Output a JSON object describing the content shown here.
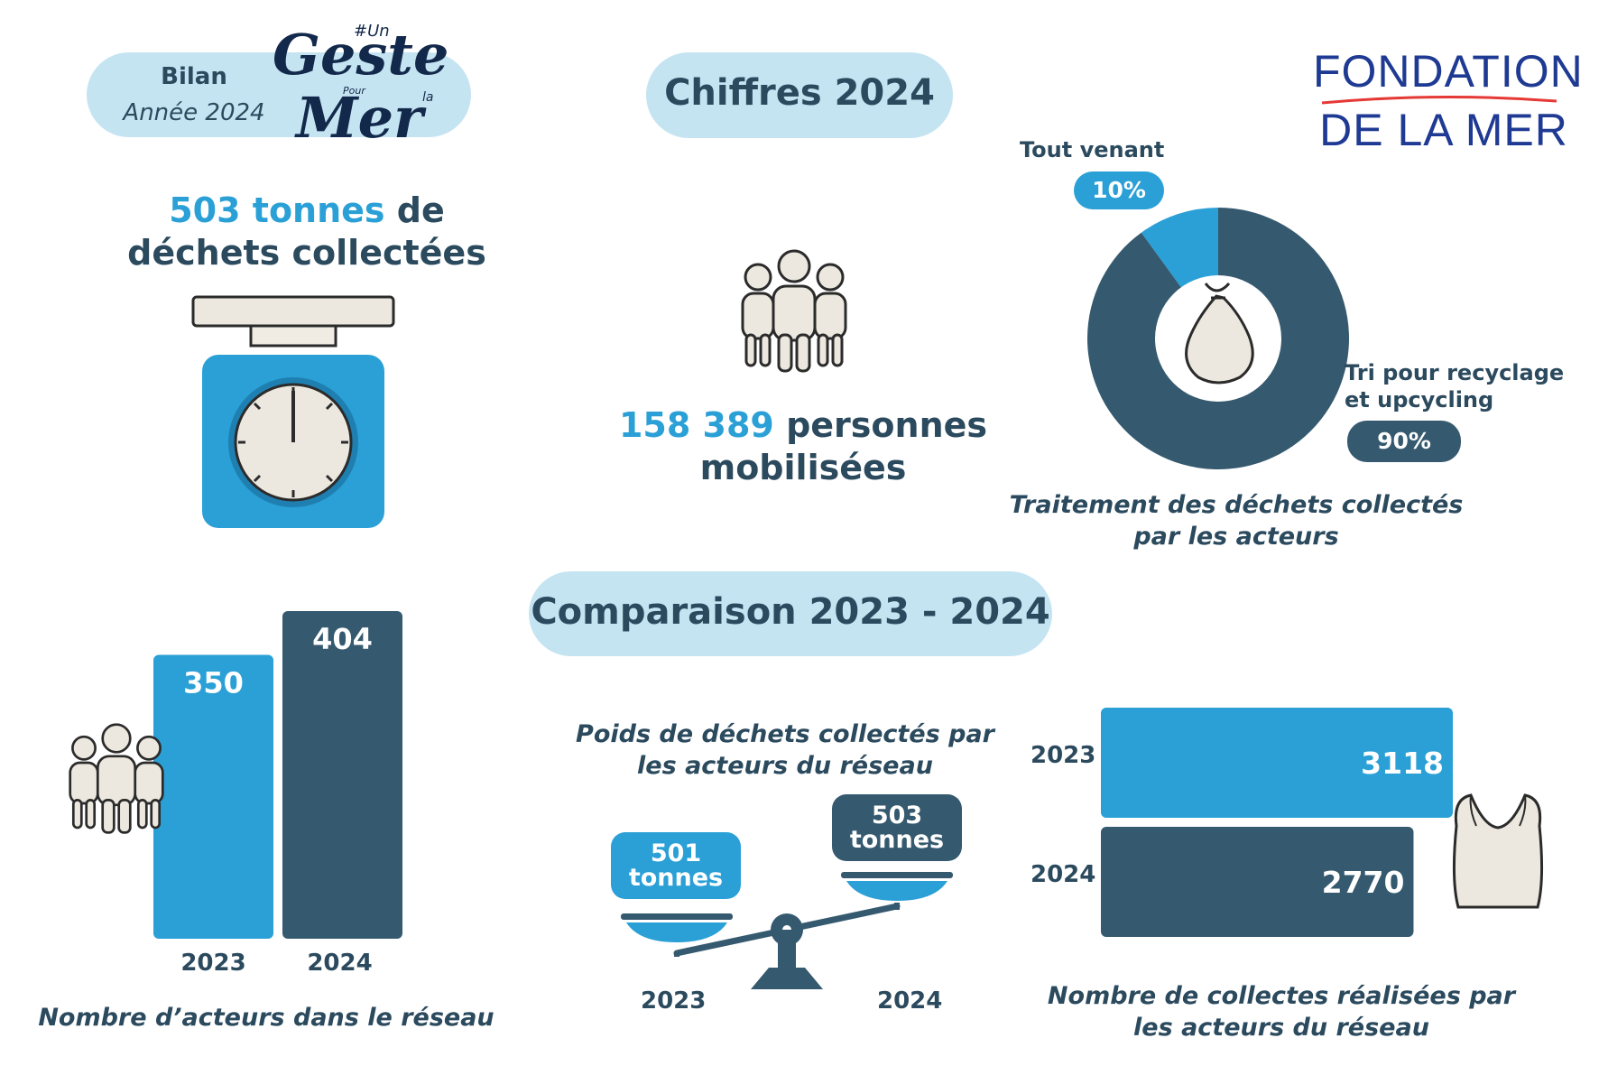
{
  "header": {
    "bilan_label": "Bilan",
    "year_label": "Année 2024",
    "logo_geste": {
      "small": "#Un",
      "main_top": "Geste",
      "pour": "Pour",
      "la": "la",
      "main_bottom": "Mer"
    },
    "logo_fondation": {
      "line1": "FONDATION",
      "line2": "DE LA MER"
    },
    "section_title": "Chiffres 2024"
  },
  "tonnage": {
    "value": "503 tonnes",
    "rest": " de",
    "line2": "déchets collectées"
  },
  "people": {
    "value": "158 389",
    "rest": " personnes",
    "line2": "mobilisées"
  },
  "treatment": {
    "tag1_name": "Tout venant",
    "tag1_value": "10%",
    "tag2_name_line1": "Tri pour recyclage",
    "tag2_name_line2": "et upcycling",
    "tag2_value": "90%",
    "caption_line1": "Traitement des déchets collectés",
    "caption_line2": "par les acteurs"
  },
  "comparison_title": "Comparaison 2023 - 2024",
  "actors": {
    "caption": "Nombre d’acteurs dans le réseau",
    "year1": "2023",
    "year2": "2024",
    "label1": "350",
    "label2": "404"
  },
  "weight": {
    "caption_line1": "Poids de déchets collectés par",
    "caption_line2": "les acteurs du réseau",
    "left_value": "501",
    "left_unit": "tonnes",
    "right_value": "503",
    "right_unit": "tonnes",
    "year1": "2023",
    "year2": "2024"
  },
  "collectes": {
    "caption_line1": "Nombre de collectes réalisées par",
    "caption_line2": "les acteurs du réseau",
    "year1": "2023",
    "year2": "2024",
    "label1": "3118",
    "label2": "2770"
  },
  "colors": {
    "blue": "#2aa0d6",
    "dark": "#35596e",
    "pill": "#c5e4f2",
    "text": "#2b4a5e"
  },
  "chart_data": [
    {
      "type": "pie",
      "labels": [
        "Tout venant",
        "Tri pour recyclage et upcycling"
      ],
      "values": [
        10,
        90
      ],
      "title": "Traitement des déchets collectés par les acteurs"
    },
    {
      "type": "bar",
      "categories": [
        "2023",
        "2024"
      ],
      "values": [
        350,
        404
      ],
      "title": "Nombre d’acteurs dans le réseau"
    },
    {
      "type": "bar",
      "categories": [
        "2023",
        "2024"
      ],
      "values": [
        501,
        503
      ],
      "title": "Poids de déchets collectés par les acteurs du réseau"
    },
    {
      "type": "bar",
      "orientation": "horizontal",
      "categories": [
        "2023",
        "2024"
      ],
      "values": [
        3118,
        2770
      ],
      "title": "Nombre de collectes réalisées par les acteurs du réseau"
    }
  ]
}
